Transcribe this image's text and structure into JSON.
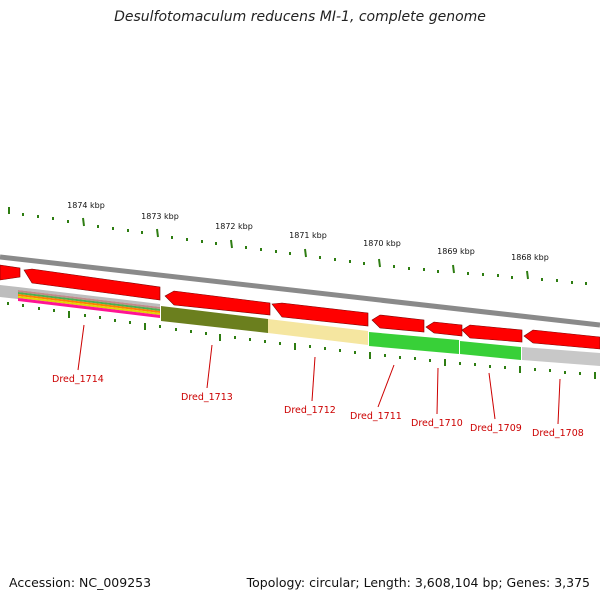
{
  "title": "Desulfotomaculum reducens MI-1, complete genome",
  "accession": "Accession: NC_009253",
  "summary": "Topology: circular; Length: 3,608,104 bp; Genes: 3,375",
  "kbp_labels": [
    "1874 kbp",
    "1873 kbp",
    "1872 kbp",
    "1871 kbp",
    "1870 kbp",
    "1869 kbp",
    "1868 kbp"
  ],
  "genes": [
    "Dred_1714",
    "Dred_1713",
    "Dred_1712",
    "Dred_1711",
    "Dred_1710",
    "Dred_1709",
    "Dred_1708"
  ],
  "colors": {
    "forward": "#ff0000",
    "label": "#cc0000",
    "tick": "#2e7d12",
    "backbone": "#8a8a8a",
    "Dred_1714": [
      "#bdbdbd",
      "#c08a8a",
      "#4caf50",
      "#ff7f00",
      "#e2d400",
      "#ff1493"
    ],
    "Dred_1713": "#6b7f1e",
    "Dred_1712": "#f5e6a0",
    "Dred_1711": "#38d038",
    "Dred_1710": "#38d038",
    "Dred_1709": "#38d038",
    "Dred_1708": "#c8c8c8"
  }
}
